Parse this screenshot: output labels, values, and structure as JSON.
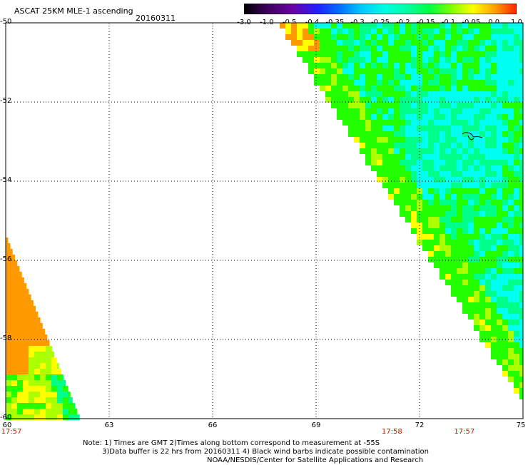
{
  "header": {
    "title": "ASCAT 25KM MLE-1 ascending",
    "date": "20160311"
  },
  "colorbar": {
    "tick_labels": [
      "-3.0",
      "-1.0",
      "-0.5",
      "-0.4",
      "-0.35",
      "-0.3",
      "-0.25",
      "-0.2",
      "-0.15",
      "-0.1",
      "-0.05",
      "0.0",
      "1.0"
    ],
    "colors": [
      "#000000",
      "#3a0057",
      "#6a00a8",
      "#2020ff",
      "#0070ff",
      "#00c8ff",
      "#00ffe0",
      "#00ffa0",
      "#00ff40",
      "#80ff00",
      "#ffff00",
      "#ffa000",
      "#ff2000"
    ]
  },
  "map": {
    "lat_labels": [
      "-50",
      "-52",
      "-54",
      "-56",
      "-58",
      "-60"
    ],
    "lon_labels": [
      "60",
      "63",
      "66",
      "69",
      "72",
      "75"
    ],
    "time_labels": [
      {
        "lon": 60,
        "text": "17:57"
      },
      {
        "lon": 71.2,
        "text": "17:58"
      },
      {
        "lon": 73.3,
        "text": "17:57"
      }
    ],
    "lat_range": [
      -60,
      -50
    ],
    "lon_range": [
      60,
      75
    ],
    "grid": true,
    "legend_colors": {
      "orange": "#ff9900",
      "yellow": "#ffff00",
      "yellowgreen": "#aaff00",
      "green": "#22ff00",
      "teal_green": "#00ff88",
      "cyan": "#00ffee"
    }
  },
  "footer": {
    "note_line1": "Note: 1) Times are GMT 2)Times along bottom correspond to measurement at -55S",
    "note_line2": "3)Data buffer is 22 hrs from 20160311 4) Black wind barbs indicate possible contamination",
    "credit": "NOAA/NESDIS/Center for Satellite Applications and Research"
  }
}
